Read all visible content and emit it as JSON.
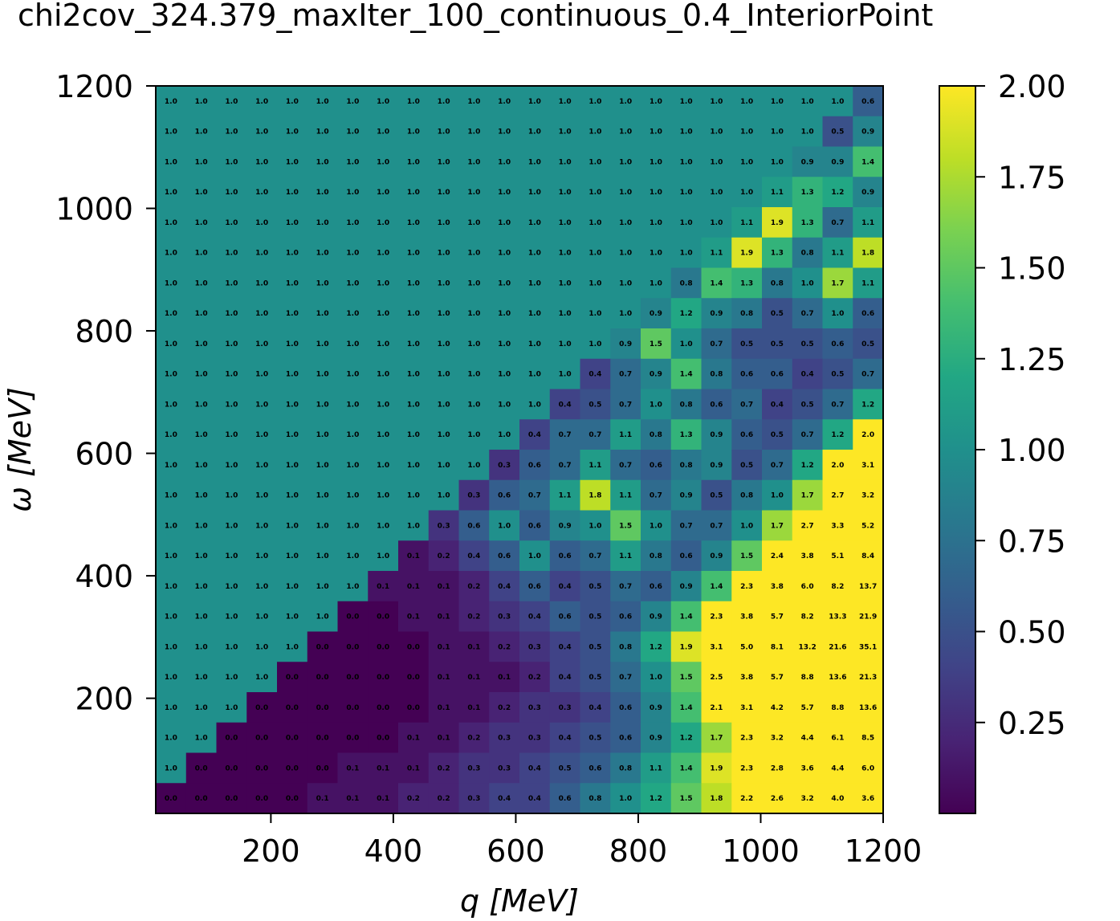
{
  "chart_data": {
    "type": "heatmap",
    "title": "chi2cov_324.379_maxIter_100_continuous_0.4_InteriorPoint",
    "xlabel": "q [MeV]",
    "ylabel": "ω [MeV]",
    "x_range": [
      12,
      1200
    ],
    "y_range": [
      12,
      1200
    ],
    "x_ticks": [
      200,
      400,
      600,
      800,
      1000,
      1200
    ],
    "y_ticks": [
      200,
      400,
      600,
      800,
      1000,
      1200
    ],
    "nx": 24,
    "ny": 24,
    "color_range": [
      0,
      2
    ],
    "colormap": "viridis",
    "colorbar_ticks": [
      "0.25",
      "0.50",
      "0.75",
      "1.00",
      "1.25",
      "1.50",
      "1.75",
      "2.00"
    ],
    "colorbar_tick_values": [
      0.25,
      0.5,
      0.75,
      1.0,
      1.25,
      1.5,
      1.75,
      2.0
    ],
    "values_top_to_bottom": [
      [
        "1.0",
        "1.0",
        "1.0",
        "1.0",
        "1.0",
        "1.0",
        "1.0",
        "1.0",
        "1.0",
        "1.0",
        "1.0",
        "1.0",
        "1.0",
        "1.0",
        "1.0",
        "1.0",
        "1.0",
        "1.0",
        "1.0",
        "1.0",
        "1.0",
        "1.0",
        "1.0",
        "0.6"
      ],
      [
        "1.0",
        "1.0",
        "1.0",
        "1.0",
        "1.0",
        "1.0",
        "1.0",
        "1.0",
        "1.0",
        "1.0",
        "1.0",
        "1.0",
        "1.0",
        "1.0",
        "1.0",
        "1.0",
        "1.0",
        "1.0",
        "1.0",
        "1.0",
        "1.0",
        "1.0",
        "0.5",
        "0.9"
      ],
      [
        "1.0",
        "1.0",
        "1.0",
        "1.0",
        "1.0",
        "1.0",
        "1.0",
        "1.0",
        "1.0",
        "1.0",
        "1.0",
        "1.0",
        "1.0",
        "1.0",
        "1.0",
        "1.0",
        "1.0",
        "1.0",
        "1.0",
        "1.0",
        "1.0",
        "0.9",
        "0.9",
        "1.4"
      ],
      [
        "1.0",
        "1.0",
        "1.0",
        "1.0",
        "1.0",
        "1.0",
        "1.0",
        "1.0",
        "1.0",
        "1.0",
        "1.0",
        "1.0",
        "1.0",
        "1.0",
        "1.0",
        "1.0",
        "1.0",
        "1.0",
        "1.0",
        "1.0",
        "1.1",
        "1.3",
        "1.2",
        "0.9"
      ],
      [
        "1.0",
        "1.0",
        "1.0",
        "1.0",
        "1.0",
        "1.0",
        "1.0",
        "1.0",
        "1.0",
        "1.0",
        "1.0",
        "1.0",
        "1.0",
        "1.0",
        "1.0",
        "1.0",
        "1.0",
        "1.0",
        "1.0",
        "1.1",
        "1.9",
        "1.3",
        "0.7",
        "1.1"
      ],
      [
        "1.0",
        "1.0",
        "1.0",
        "1.0",
        "1.0",
        "1.0",
        "1.0",
        "1.0",
        "1.0",
        "1.0",
        "1.0",
        "1.0",
        "1.0",
        "1.0",
        "1.0",
        "1.0",
        "1.0",
        "1.0",
        "1.1",
        "1.9",
        "1.3",
        "0.8",
        "1.1",
        "1.8"
      ],
      [
        "1.0",
        "1.0",
        "1.0",
        "1.0",
        "1.0",
        "1.0",
        "1.0",
        "1.0",
        "1.0",
        "1.0",
        "1.0",
        "1.0",
        "1.0",
        "1.0",
        "1.0",
        "1.0",
        "1.0",
        "0.8",
        "1.4",
        "1.3",
        "0.8",
        "1.0",
        "1.7",
        "1.1"
      ],
      [
        "1.0",
        "1.0",
        "1.0",
        "1.0",
        "1.0",
        "1.0",
        "1.0",
        "1.0",
        "1.0",
        "1.0",
        "1.0",
        "1.0",
        "1.0",
        "1.0",
        "1.0",
        "1.0",
        "0.9",
        "1.2",
        "0.9",
        "0.8",
        "0.5",
        "0.7",
        "1.0",
        "0.6"
      ],
      [
        "1.0",
        "1.0",
        "1.0",
        "1.0",
        "1.0",
        "1.0",
        "1.0",
        "1.0",
        "1.0",
        "1.0",
        "1.0",
        "1.0",
        "1.0",
        "1.0",
        "1.0",
        "0.9",
        "1.5",
        "1.0",
        "0.7",
        "0.5",
        "0.5",
        "0.5",
        "0.6",
        "0.5"
      ],
      [
        "1.0",
        "1.0",
        "1.0",
        "1.0",
        "1.0",
        "1.0",
        "1.0",
        "1.0",
        "1.0",
        "1.0",
        "1.0",
        "1.0",
        "1.0",
        "1.0",
        "0.4",
        "0.7",
        "0.9",
        "1.4",
        "0.8",
        "0.6",
        "0.6",
        "0.4",
        "0.5",
        "0.7"
      ],
      [
        "1.0",
        "1.0",
        "1.0",
        "1.0",
        "1.0",
        "1.0",
        "1.0",
        "1.0",
        "1.0",
        "1.0",
        "1.0",
        "1.0",
        "1.0",
        "0.4",
        "0.5",
        "0.7",
        "1.0",
        "0.8",
        "0.6",
        "0.7",
        "0.4",
        "0.5",
        "0.7",
        "1.2"
      ],
      [
        "1.0",
        "1.0",
        "1.0",
        "1.0",
        "1.0",
        "1.0",
        "1.0",
        "1.0",
        "1.0",
        "1.0",
        "1.0",
        "1.0",
        "0.4",
        "0.7",
        "0.7",
        "1.1",
        "0.8",
        "1.3",
        "0.9",
        "0.6",
        "0.5",
        "0.7",
        "1.2",
        "2.0"
      ],
      [
        "1.0",
        "1.0",
        "1.0",
        "1.0",
        "1.0",
        "1.0",
        "1.0",
        "1.0",
        "1.0",
        "1.0",
        "1.0",
        "0.3",
        "0.6",
        "0.7",
        "1.1",
        "0.7",
        "0.6",
        "0.8",
        "0.9",
        "0.5",
        "0.7",
        "1.2",
        "2.0",
        "3.1"
      ],
      [
        "1.0",
        "1.0",
        "1.0",
        "1.0",
        "1.0",
        "1.0",
        "1.0",
        "1.0",
        "1.0",
        "1.0",
        "0.3",
        "0.6",
        "0.7",
        "1.1",
        "1.8",
        "1.1",
        "0.7",
        "0.9",
        "0.5",
        "0.8",
        "1.0",
        "1.7",
        "2.7",
        "3.2"
      ],
      [
        "1.0",
        "1.0",
        "1.0",
        "1.0",
        "1.0",
        "1.0",
        "1.0",
        "1.0",
        "1.0",
        "0.3",
        "0.6",
        "1.0",
        "0.6",
        "0.9",
        "1.0",
        "1.5",
        "1.0",
        "0.7",
        "0.7",
        "1.0",
        "1.7",
        "2.7",
        "3.3",
        "5.2"
      ],
      [
        "1.0",
        "1.0",
        "1.0",
        "1.0",
        "1.0",
        "1.0",
        "1.0",
        "1.0",
        "0.1",
        "0.2",
        "0.4",
        "0.6",
        "1.0",
        "0.6",
        "0.7",
        "1.1",
        "0.8",
        "0.6",
        "0.9",
        "1.5",
        "2.4",
        "3.8",
        "5.1",
        "8.4"
      ],
      [
        "1.0",
        "1.0",
        "1.0",
        "1.0",
        "1.0",
        "1.0",
        "1.0",
        "0.1",
        "0.1",
        "0.1",
        "0.2",
        "0.4",
        "0.6",
        "0.4",
        "0.5",
        "0.7",
        "0.6",
        "0.9",
        "1.4",
        "2.3",
        "3.8",
        "6.0",
        "8.2",
        "13.7"
      ],
      [
        "1.0",
        "1.0",
        "1.0",
        "1.0",
        "1.0",
        "1.0",
        "0.0",
        "0.0",
        "0.1",
        "0.1",
        "0.2",
        "0.3",
        "0.4",
        "0.6",
        "0.5",
        "0.6",
        "0.9",
        "1.4",
        "2.3",
        "3.8",
        "5.7",
        "8.2",
        "13.3",
        "21.9"
      ],
      [
        "1.0",
        "1.0",
        "1.0",
        "1.0",
        "1.0",
        "0.0",
        "0.0",
        "0.0",
        "0.0",
        "0.1",
        "0.1",
        "0.2",
        "0.3",
        "0.4",
        "0.5",
        "0.8",
        "1.2",
        "1.9",
        "3.1",
        "5.0",
        "8.1",
        "13.2",
        "21.6",
        "35.1"
      ],
      [
        "1.0",
        "1.0",
        "1.0",
        "1.0",
        "0.0",
        "0.0",
        "0.0",
        "0.0",
        "0.0",
        "0.1",
        "0.1",
        "0.1",
        "0.2",
        "0.4",
        "0.5",
        "0.7",
        "1.0",
        "1.5",
        "2.5",
        "3.8",
        "5.7",
        "8.8",
        "13.6",
        "21.3"
      ],
      [
        "1.0",
        "1.0",
        "1.0",
        "0.0",
        "0.0",
        "0.0",
        "0.0",
        "0.0",
        "0.0",
        "0.1",
        "0.1",
        "0.2",
        "0.3",
        "0.3",
        "0.4",
        "0.6",
        "0.9",
        "1.4",
        "2.1",
        "3.1",
        "4.2",
        "5.7",
        "8.8",
        "13.6"
      ],
      [
        "1.0",
        "1.0",
        "0.0",
        "0.0",
        "0.0",
        "0.0",
        "0.0",
        "0.0",
        "0.1",
        "0.1",
        "0.2",
        "0.3",
        "0.3",
        "0.4",
        "0.5",
        "0.6",
        "0.9",
        "1.2",
        "1.7",
        "2.3",
        "3.2",
        "4.4",
        "6.1",
        "8.5"
      ],
      [
        "1.0",
        "0.0",
        "0.0",
        "0.0",
        "0.0",
        "0.0",
        "0.1",
        "0.1",
        "0.1",
        "0.2",
        "0.3",
        "0.3",
        "0.4",
        "0.5",
        "0.6",
        "0.8",
        "1.1",
        "1.4",
        "1.9",
        "2.3",
        "2.8",
        "3.6",
        "4.4",
        "6.0"
      ],
      [
        "0.0",
        "0.0",
        "0.0",
        "0.0",
        "0.0",
        "0.1",
        "0.1",
        "0.1",
        "0.2",
        "0.2",
        "0.3",
        "0.4",
        "0.4",
        "0.6",
        "0.8",
        "1.0",
        "1.2",
        "1.5",
        "1.8",
        "2.2",
        "2.6",
        "3.2",
        "4.0",
        "3.6"
      ]
    ]
  }
}
